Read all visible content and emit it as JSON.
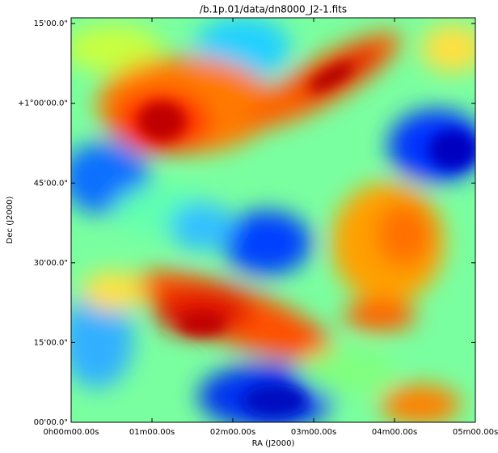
{
  "chart_data": {
    "type": "image",
    "title": "/b.1p.01/data/dn8000_J2-1.fits",
    "x_label": "RA (J2000)",
    "y_label": "Dec (J2000)",
    "xlim": [
      0,
      5
    ],
    "ylim": [
      0,
      1.268
    ],
    "xticks": [
      {
        "value": 0,
        "label": "0h00m00.00s"
      },
      {
        "value": 1,
        "label": "01m00.00s"
      },
      {
        "value": 2,
        "label": "02m00.00s"
      },
      {
        "value": 3,
        "label": "03m00.00s"
      },
      {
        "value": 4,
        "label": "04m00.00s"
      },
      {
        "value": 5,
        "label": "05m00.00s"
      }
    ],
    "yticks": [
      {
        "value": 0,
        "label": "00'00.0\""
      },
      {
        "value": 0.25,
        "label": "15'00.0\""
      },
      {
        "value": 0.5,
        "label": "30'00.0\""
      },
      {
        "value": 0.75,
        "label": "45'00.0\""
      },
      {
        "value": 1.0,
        "label": "+1°00'00.0\""
      },
      {
        "value": 1.25,
        "label": "15'00.0\""
      }
    ]
  }
}
